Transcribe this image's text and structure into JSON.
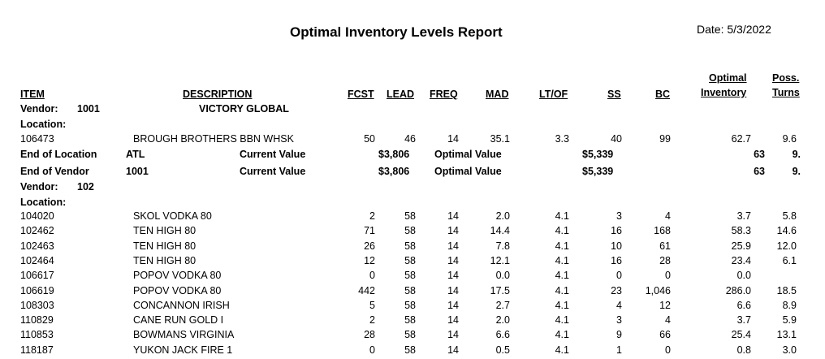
{
  "report": {
    "title": "Optimal Inventory Levels Report",
    "date_label": "Date:",
    "date_value": "5/3/2022"
  },
  "headers": {
    "item": "ITEM",
    "description": "DESCRIPTION",
    "fcst": "FCST",
    "lead": "LEAD",
    "freq": "FREQ",
    "mad": "MAD",
    "ltof": "LT/OF",
    "ss": "SS",
    "bc": "BC",
    "optimal_line1": "Optimal",
    "optimal_line2": "Inventory",
    "poss_line1": "Poss.",
    "poss_line2": "Turns"
  },
  "group1": {
    "vendor_label": "Vendor:",
    "vendor_id": "1001",
    "vendor_name": "VICTORY GLOBAL",
    "location_label": "Location:",
    "rows": [
      {
        "item": "106473",
        "desc": "BROUGH BROTHERS BBN WHSK",
        "fcst": "50",
        "lead": "46",
        "freq": "14",
        "mad": "35.1",
        "ltof": "3.3",
        "ss": "40",
        "bc": "99",
        "opt": "62.7",
        "turns": "9.6"
      }
    ],
    "end_location": {
      "label": "End of Location",
      "code": "ATL",
      "cv_label": "Current Value",
      "cv": "$3,806",
      "ov_label": "Optimal Value",
      "ov": "$5,339",
      "opt": "63",
      "turns": "9."
    },
    "end_vendor": {
      "label": "End of Vendor",
      "code": "1001",
      "cv_label": "Current Value",
      "cv": "$3,806",
      "ov_label": "Optimal Value",
      "ov": "$5,339",
      "opt": "63",
      "turns": "9."
    }
  },
  "group2": {
    "vendor_label": "Vendor:",
    "vendor_id": "102",
    "location_label": "Location:",
    "rows": [
      {
        "item": "104020",
        "desc": "SKOL VODKA 80",
        "fcst": "2",
        "lead": "58",
        "freq": "14",
        "mad": "2.0",
        "ltof": "4.1",
        "ss": "3",
        "bc": "4",
        "opt": "3.7",
        "turns": "5.8"
      },
      {
        "item": "102462",
        "desc": "TEN HIGH 80",
        "fcst": "71",
        "lead": "58",
        "freq": "14",
        "mad": "14.4",
        "ltof": "4.1",
        "ss": "16",
        "bc": "168",
        "opt": "58.3",
        "turns": "14.6"
      },
      {
        "item": "102463",
        "desc": "TEN HIGH 80",
        "fcst": "26",
        "lead": "58",
        "freq": "14",
        "mad": "7.8",
        "ltof": "4.1",
        "ss": "10",
        "bc": "61",
        "opt": "25.9",
        "turns": "12.0"
      },
      {
        "item": "102464",
        "desc": "TEN HIGH 80",
        "fcst": "12",
        "lead": "58",
        "freq": "14",
        "mad": "12.1",
        "ltof": "4.1",
        "ss": "16",
        "bc": "28",
        "opt": "23.4",
        "turns": "6.1"
      },
      {
        "item": "106617",
        "desc": "POPOV VODKA 80",
        "fcst": "0",
        "lead": "58",
        "freq": "14",
        "mad": "0.0",
        "ltof": "4.1",
        "ss": "0",
        "bc": "0",
        "opt": "0.0",
        "turns": ""
      },
      {
        "item": "106619",
        "desc": "POPOV VODKA 80",
        "fcst": "442",
        "lead": "58",
        "freq": "14",
        "mad": "17.5",
        "ltof": "4.1",
        "ss": "23",
        "bc": "1,046",
        "opt": "286.0",
        "turns": "18.5"
      },
      {
        "item": "108303",
        "desc": "CONCANNON IRISH",
        "fcst": "5",
        "lead": "58",
        "freq": "14",
        "mad": "2.7",
        "ltof": "4.1",
        "ss": "4",
        "bc": "12",
        "opt": "6.6",
        "turns": "8.9"
      },
      {
        "item": "110829",
        "desc": "CANE RUN GOLD I",
        "fcst": "2",
        "lead": "58",
        "freq": "14",
        "mad": "2.0",
        "ltof": "4.1",
        "ss": "3",
        "bc": "4",
        "opt": "3.7",
        "turns": "5.9"
      },
      {
        "item": "110853",
        "desc": "BOWMANS VIRGINIA",
        "fcst": "28",
        "lead": "58",
        "freq": "14",
        "mad": "6.6",
        "ltof": "4.1",
        "ss": "9",
        "bc": "66",
        "opt": "25.4",
        "turns": "13.1"
      },
      {
        "item": "118187",
        "desc": "YUKON JACK FIRE 1",
        "fcst": "0",
        "lead": "58",
        "freq": "14",
        "mad": "0.5",
        "ltof": "4.1",
        "ss": "1",
        "bc": "0",
        "opt": "0.8",
        "turns": "3.0"
      }
    ]
  }
}
